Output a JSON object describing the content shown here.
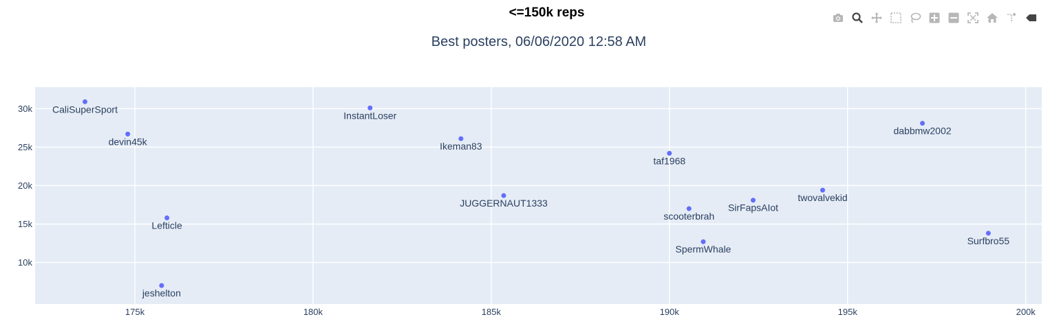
{
  "page": {
    "heading": "<=150k reps"
  },
  "modebar": {
    "buttons": [
      {
        "name": "camera-icon"
      },
      {
        "name": "zoom-icon"
      },
      {
        "name": "pan-icon"
      },
      {
        "name": "box-select-icon"
      },
      {
        "name": "lasso-select-icon"
      },
      {
        "name": "zoom-in-icon"
      },
      {
        "name": "zoom-out-icon"
      },
      {
        "name": "autoscale-icon"
      },
      {
        "name": "reset-axes-icon"
      },
      {
        "name": "spike-lines-icon"
      },
      {
        "name": "hover-closest-icon"
      }
    ]
  },
  "chart_data": {
    "type": "scatter",
    "title": "Best posters, 06/06/2020 12:58 AM",
    "xlabel": "",
    "ylabel": "",
    "xlim": [
      172200,
      200450
    ],
    "ylim": [
      4600,
      32800
    ],
    "xticks": [
      175000,
      180000,
      185000,
      190000,
      195000,
      200000
    ],
    "xtick_labels": [
      "175k",
      "180k",
      "185k",
      "190k",
      "195k",
      "200k"
    ],
    "yticks": [
      10000,
      15000,
      20000,
      25000,
      30000
    ],
    "ytick_labels": [
      "10k",
      "15k",
      "20k",
      "25k",
      "30k"
    ],
    "grid": true,
    "colors": {
      "marker": "#636efa",
      "plot_bg": "#e5ecf6",
      "grid": "#ffffff",
      "text": "#2a3f5f"
    },
    "points": [
      {
        "label": "CaliSuperSport",
        "x": 173600,
        "y": 30900
      },
      {
        "label": "devin45k",
        "x": 174800,
        "y": 26700
      },
      {
        "label": "Lefticle",
        "x": 175900,
        "y": 15800
      },
      {
        "label": "jeshelton",
        "x": 175750,
        "y": 7000
      },
      {
        "label": "InstantLoser",
        "x": 181600,
        "y": 30100
      },
      {
        "label": "Ikeman83",
        "x": 184150,
        "y": 26100
      },
      {
        "label": "JUGGERNAUT1333",
        "x": 185350,
        "y": 18700
      },
      {
        "label": "taf1968",
        "x": 190000,
        "y": 24200
      },
      {
        "label": "scooterbrah",
        "x": 190550,
        "y": 17000
      },
      {
        "label": "SpermWhale",
        "x": 190950,
        "y": 12700
      },
      {
        "label": "SirFapsAIot",
        "x": 192350,
        "y": 18100
      },
      {
        "label": "twovalvekid",
        "x": 194300,
        "y": 19400
      },
      {
        "label": "dabbmw2002",
        "x": 197100,
        "y": 28100
      },
      {
        "label": "Surfbro55",
        "x": 198950,
        "y": 13800
      }
    ]
  }
}
